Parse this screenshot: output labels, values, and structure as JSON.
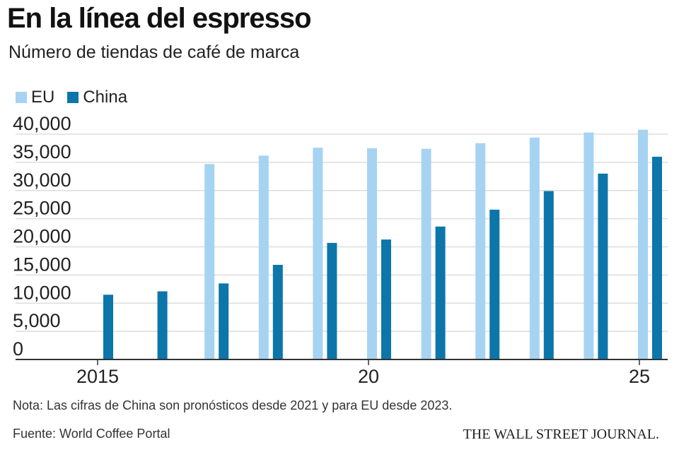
{
  "title": "En la línea del espresso",
  "subtitle": "Número de tiendas de café de marca",
  "note": "Nota: Las cifras de China son pronósticos desde 2021 y para EU desde 2023.",
  "source": "Fuente: World Coffee Portal",
  "brand": "THE WALL STREET JOURNAL.",
  "colors": {
    "eu": "#a6d3f2",
    "china": "#0c76aa",
    "grid": "#dddddd",
    "axis": "#333333"
  },
  "chart_data": {
    "type": "bar",
    "categories": [
      2015,
      2016,
      2017,
      2018,
      2019,
      2020,
      2021,
      2022,
      2023,
      2024,
      2025
    ],
    "x_tick_labels": [
      {
        "value": 2015,
        "label": "2015"
      },
      {
        "value": 2020,
        "label": "20"
      },
      {
        "value": 2025,
        "label": "25"
      }
    ],
    "series": [
      {
        "name": "EU",
        "values": [
          null,
          null,
          34700,
          36200,
          37600,
          37500,
          37400,
          38400,
          39400,
          40300,
          40800
        ]
      },
      {
        "name": "China",
        "values": [
          11500,
          12100,
          13500,
          16800,
          20700,
          21300,
          23600,
          26600,
          29900,
          33000,
          36000
        ]
      }
    ],
    "ylim": [
      0,
      40000
    ],
    "y_ticks": [
      "0",
      "5,000",
      "10,000",
      "15,000",
      "20,000",
      "25,000",
      "30,000",
      "35,000",
      "40,000"
    ],
    "y_tick_values": [
      0,
      5000,
      10000,
      15000,
      20000,
      25000,
      30000,
      35000,
      40000
    ],
    "grid": true,
    "legend_position": "top-left",
    "xlabel": "",
    "ylabel": ""
  }
}
